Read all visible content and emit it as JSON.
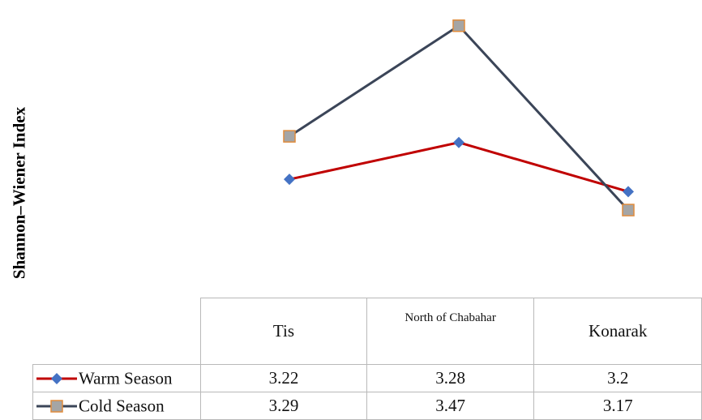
{
  "chart_data": {
    "type": "line",
    "title": "",
    "ylabel": "Shannon–Wiener Index",
    "xlabel": "",
    "categories": [
      "Tis",
      "North of Chabahar",
      "Konarak"
    ],
    "ylim": [
      3.05,
      3.5
    ],
    "grid": false,
    "legend": "data table",
    "series": [
      {
        "name": "Warm Season",
        "values": [
          3.22,
          3.28,
          3.2
        ],
        "value_labels": [
          "3.22",
          "3.28",
          "3.2"
        ],
        "line_color": "#c00000",
        "marker": "diamond",
        "marker_color": "#4472c4"
      },
      {
        "name": "Cold Season",
        "values": [
          3.29,
          3.47,
          3.17
        ],
        "value_labels": [
          "3.29",
          "3.47",
          "3.17"
        ],
        "line_color": "#3b4558",
        "marker": "square",
        "marker_color": "#a5a5a5",
        "marker_edge": "#e08c3c"
      }
    ]
  }
}
